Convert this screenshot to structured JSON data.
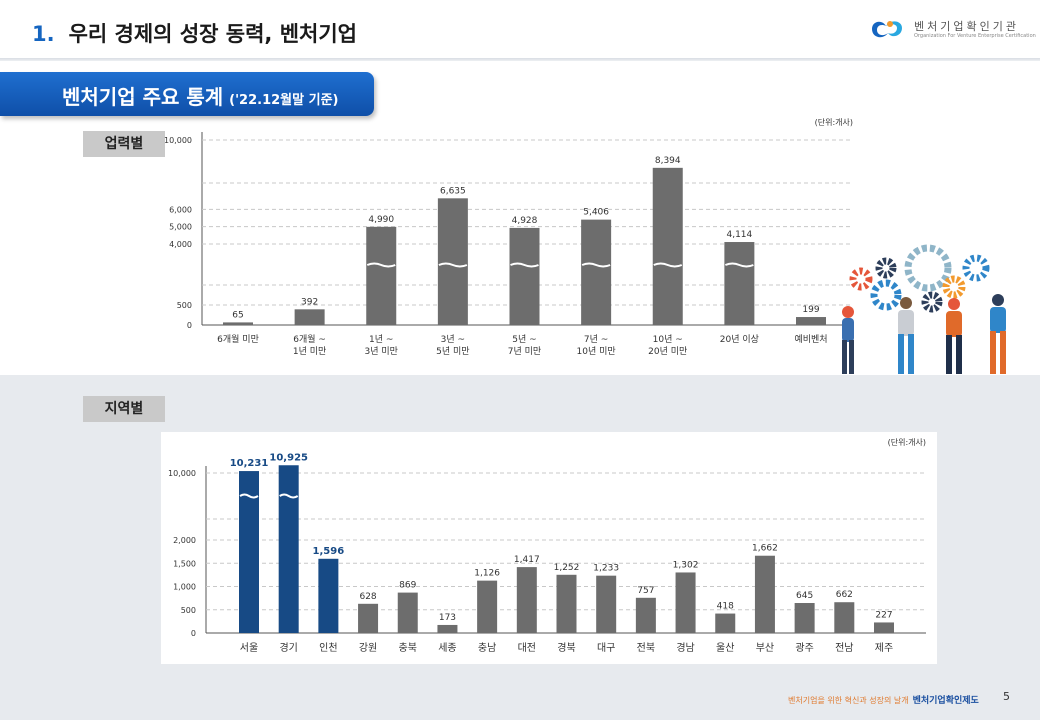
{
  "header": {
    "number": "1.",
    "title": "우리 경제의 성장 동력, 벤처기업"
  },
  "logo": {
    "name": "벤처기업확인기관",
    "subtitle": "Organization For Venture Enterprise Certification"
  },
  "section": {
    "title": "벤처기업 주요 통계",
    "subtitle": "('22.12월말 기준)"
  },
  "colors": {
    "bar_gray": "#6d6d6d",
    "bar_blue": "#174a85",
    "banner_blue": "#1f6fd0",
    "bottom_bg": "#e7eaee",
    "footer_orange": "#e07a2f"
  },
  "chart_data": [
    {
      "type": "bar",
      "tag": "업력별",
      "unit": "(단위:개사)",
      "categories": [
        "6개월 미만",
        "6개월 ~ 1년 미만",
        "1년 ~ 3년 미만",
        "3년 ~ 5년 미만",
        "5년 ~ 7년 미만",
        "7년 ~ 10년 미만",
        "10년 ~ 20년 미만",
        "20년 이상",
        "예비벤처"
      ],
      "category_lines": [
        [
          "6개월 미만"
        ],
        [
          "6개월 ~",
          "1년 미만"
        ],
        [
          "1년 ~",
          "3년 미만"
        ],
        [
          "3년 ~",
          "5년 미만"
        ],
        [
          "5년 ~",
          "7년 미만"
        ],
        [
          "7년 ~",
          "10년 미만"
        ],
        [
          "10년 ~",
          "20년 미만"
        ],
        [
          "20년 이상"
        ],
        [
          "예비벤처"
        ]
      ],
      "values": [
        65,
        392,
        4990,
        6635,
        4928,
        5406,
        8394,
        4114,
        199
      ],
      "value_labels": [
        "65",
        "392",
        "4,990",
        "6,635",
        "4,928",
        "5,406",
        "8,394",
        "4,114",
        "199"
      ],
      "y_ticks": [
        0,
        500,
        4000,
        5000,
        6000,
        10000
      ],
      "y_tick_labels": [
        "0",
        "500",
        "4,000",
        "5,000",
        "6,000",
        "10,000"
      ],
      "broken_axis": true,
      "grid": true
    },
    {
      "type": "bar",
      "tag": "지역별",
      "unit": "(단위:개사)",
      "categories": [
        "서울",
        "경기",
        "인천",
        "강원",
        "충북",
        "세종",
        "충남",
        "대전",
        "경북",
        "대구",
        "전북",
        "경남",
        "울산",
        "부산",
        "광주",
        "전남",
        "제주"
      ],
      "values": [
        10231,
        10925,
        1596,
        628,
        869,
        173,
        1126,
        1417,
        1252,
        1233,
        757,
        1302,
        418,
        1662,
        645,
        662,
        227
      ],
      "value_labels": [
        "10,231",
        "10,925",
        "1,596",
        "628",
        "869",
        "173",
        "1,126",
        "1,417",
        "1,252",
        "1,233",
        "757",
        "1,302",
        "418",
        "1,662",
        "645",
        "662",
        "227"
      ],
      "highlighted": [
        "서울",
        "경기",
        "인천"
      ],
      "y_ticks": [
        0,
        500,
        1000,
        1500,
        2000,
        10000
      ],
      "y_tick_labels": [
        "0",
        "500",
        "1,000",
        "1,500",
        "2,000",
        "10,000"
      ],
      "broken_axis": true,
      "grid": true
    }
  ],
  "footer": {
    "text": "벤처기업을 위한 혁신과 성장의 날개",
    "brand": "벤처기업확인제도",
    "page": "5"
  }
}
